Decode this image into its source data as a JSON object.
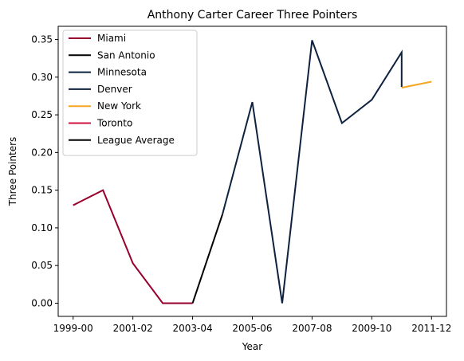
{
  "chart_data": {
    "type": "line",
    "title": "Anthony Carter Career Three Pointers",
    "xlabel": "Year",
    "ylabel": "Three Pointers",
    "x_categories": [
      "1999-00",
      "2000-01",
      "2001-02",
      "2002-03",
      "2003-04",
      "2004-05",
      "2005-06",
      "2006-07",
      "2007-08",
      "2008-09",
      "2009-10",
      "2010-11",
      "2011-12"
    ],
    "x_tick_labels": [
      "1999-00",
      "2001-02",
      "2003-04",
      "2005-06",
      "2007-08",
      "2009-10",
      "2011-12"
    ],
    "ylim": [
      -0.0175,
      0.3675
    ],
    "y_ticks": [
      "0.00",
      "0.05",
      "0.10",
      "0.15",
      "0.20",
      "0.25",
      "0.30",
      "0.35"
    ],
    "grid": false,
    "legend_position": "top-left",
    "series": [
      {
        "name": "Miami",
        "color": "#98002E",
        "points": [
          [
            "1999-00",
            0.13
          ],
          [
            "2000-01",
            0.15
          ],
          [
            "2001-02",
            0.053
          ],
          [
            "2002-03",
            0.0
          ],
          [
            "2003-04",
            0.0
          ]
        ]
      },
      {
        "name": "San Antonio",
        "color": "#000000",
        "points": [
          [
            "2003-04",
            0.0
          ],
          [
            "2004-05",
            0.118
          ]
        ]
      },
      {
        "name": "Minnesota",
        "color": "#0C2340",
        "points": [
          [
            "2004-05",
            0.118
          ],
          [
            "2005-06",
            0.267
          ]
        ]
      },
      {
        "name": "Denver",
        "color": "#0E2240",
        "points": [
          [
            "2005-06",
            0.267
          ],
          [
            "2006-07",
            0.0
          ],
          [
            "2007-08",
            0.349
          ],
          [
            "2008-09",
            0.239
          ],
          [
            "2009-10",
            0.27
          ],
          [
            "2010-11",
            0.333
          ],
          [
            "2010-11",
            0.287
          ]
        ]
      },
      {
        "name": "New York",
        "color": "#F5A623",
        "points": [
          [
            "2010-11",
            0.286
          ],
          [
            "2011-12",
            0.294
          ]
        ]
      },
      {
        "name": "Toronto",
        "color": "#CE1141",
        "points": []
      },
      {
        "name": "League Average",
        "color": "#000000",
        "points": []
      }
    ]
  }
}
